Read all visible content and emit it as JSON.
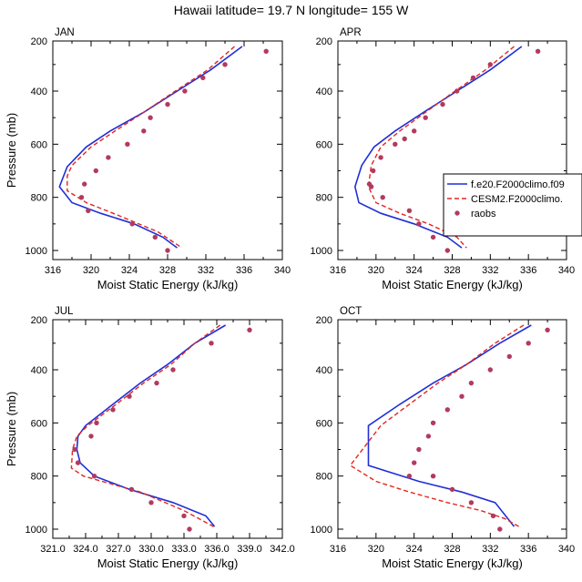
{
  "figure_title": "Hawaii  latitude= 19.7 N longitude= 155 W",
  "colors": {
    "series1": "#1f2fd8",
    "series2": "#e2261f",
    "obs": "#b33a5e"
  },
  "chart_data": [
    {
      "type": "line",
      "title": "JAN",
      "xlabel": "Moist Static Energy (kJ/kg)",
      "ylabel": "Pressure (mb)",
      "xlim": [
        316,
        340
      ],
      "ylim": [
        1000,
        200
      ],
      "xticks": [
        "316",
        "320",
        "324",
        "328",
        "332",
        "336",
        "340"
      ],
      "yticks": [
        "200",
        "400",
        "600",
        "800",
        "1000"
      ],
      "series": [
        {
          "x": [
            335.8,
            332.5,
            329.0,
            325.5,
            322.0,
            319.5,
            317.5,
            316.7,
            318.0,
            321.0,
            324.5,
            327.5,
            329.0
          ],
          "y": [
            232,
            320,
            400,
            480,
            550,
            610,
            685,
            760,
            820,
            860,
            900,
            950,
            990
          ]
        },
        {
          "x": [
            335.0,
            332.2,
            328.8,
            325.5,
            322.5,
            320.0,
            318.0,
            317.5,
            317.5,
            319.5,
            323.0,
            327.0,
            329.5
          ],
          "y": [
            232,
            320,
            400,
            480,
            550,
            610,
            680,
            720,
            775,
            820,
            870,
            930,
            990
          ]
        },
        {
          "x": [
            338.3,
            334.0,
            331.7,
            329.8,
            328.0,
            326.2,
            325.5,
            323.8,
            321.8,
            320.5,
            319.3,
            319.0,
            319.7,
            324.3,
            326.7,
            328.0
          ],
          "y": [
            250,
            300,
            350,
            400,
            450,
            500,
            550,
            600,
            650,
            700,
            750,
            800,
            850,
            900,
            950,
            1000
          ]
        }
      ]
    },
    {
      "type": "line",
      "title": "APR",
      "xlabel": "Moist Static Energy (kJ/kg)",
      "ylabel": "",
      "xlim": [
        316,
        340
      ],
      "ylim": [
        1000,
        200
      ],
      "xticks": [
        "316",
        "320",
        "324",
        "328",
        "332",
        "336",
        "340"
      ],
      "yticks": [
        "200",
        "400",
        "600",
        "800",
        "1000"
      ],
      "legend": {
        "position": "right",
        "entries": [
          "f.e20.F2000climo.f09",
          "CESM2.F2000climo.",
          "raobs"
        ]
      },
      "series": [
        {
          "name": "f.e20.F2000climo.f09",
          "x": [
            335.3,
            332.0,
            328.5,
            325.0,
            322.0,
            319.8,
            318.5,
            317.8,
            318.2,
            320.5,
            324.0,
            327.5,
            329.0
          ],
          "y": [
            232,
            320,
            400,
            480,
            550,
            610,
            680,
            760,
            820,
            860,
            900,
            950,
            990
          ]
        },
        {
          "name": "CESM2.F2000climo.",
          "x": [
            334.5,
            331.5,
            328.3,
            325.2,
            322.5,
            320.5,
            319.5,
            319.2,
            320.0,
            322.5,
            325.5,
            328.5,
            329.5
          ],
          "y": [
            232,
            320,
            400,
            480,
            550,
            610,
            680,
            760,
            820,
            860,
            900,
            950,
            990
          ]
        },
        {
          "name": "raobs",
          "x": [
            337.0,
            332.0,
            330.2,
            328.5,
            327.0,
            325.2,
            324.0,
            323.0,
            322.0,
            320.5,
            319.7,
            319.3,
            319.5,
            320.7,
            323.5,
            324.5,
            326.0,
            327.5
          ],
          "y": [
            250,
            300,
            350,
            400,
            450,
            500,
            550,
            580,
            600,
            650,
            700,
            750,
            760,
            800,
            850,
            900,
            950,
            1000
          ]
        }
      ]
    },
    {
      "type": "line",
      "title": "JUL",
      "xlabel": "Moist Static Energy (kJ/kg)",
      "ylabel": "Pressure (mb)",
      "xlim": [
        321,
        342
      ],
      "ylim": [
        1000,
        200
      ],
      "xticks": [
        "321.0",
        "324.0",
        "327.0",
        "330.0",
        "333.0",
        "336.0",
        "339.0",
        "342.0"
      ],
      "yticks": [
        "200",
        "400",
        "600",
        "800",
        "1000"
      ],
      "series": [
        {
          "x": [
            336.8,
            334.0,
            331.5,
            329.0,
            326.5,
            324.0,
            323.3,
            323.2,
            323.5,
            324.8,
            328.0,
            332.0,
            335.0,
            335.8
          ],
          "y": [
            232,
            300,
            380,
            450,
            530,
            610,
            650,
            700,
            750,
            800,
            850,
            900,
            950,
            990
          ]
        },
        {
          "x": [
            336.3,
            334.0,
            331.8,
            329.3,
            326.8,
            324.2,
            323.2,
            322.8,
            322.7,
            323.8,
            325.5,
            329.0,
            333.0,
            335.7
          ],
          "y": [
            232,
            300,
            380,
            450,
            530,
            610,
            650,
            700,
            770,
            800,
            820,
            860,
            930,
            990
          ]
        },
        {
          "x": [
            339.0,
            335.5,
            332.0,
            330.5,
            328.0,
            326.5,
            325.0,
            324.5,
            323.0,
            323.3,
            324.8,
            328.2,
            330.0,
            333.0,
            333.5
          ],
          "y": [
            250,
            300,
            400,
            450,
            500,
            550,
            600,
            650,
            700,
            750,
            800,
            850,
            900,
            950,
            1000
          ]
        }
      ]
    },
    {
      "type": "line",
      "title": "OCT",
      "xlabel": "Moist Static Energy (kJ/kg)",
      "ylabel": "",
      "xlim": [
        316,
        340
      ],
      "ylim": [
        1000,
        200
      ],
      "xticks": [
        "316",
        "320",
        "324",
        "328",
        "332",
        "336",
        "340"
      ],
      "yticks": [
        "200",
        "400",
        "600",
        "800",
        "1000"
      ],
      "series": [
        {
          "x": [
            336.3,
            333.0,
            329.5,
            326.0,
            322.5,
            319.2,
            319.2,
            319.2,
            324.5,
            329.0,
            332.5,
            334.5
          ],
          "y": [
            232,
            300,
            380,
            450,
            530,
            610,
            685,
            760,
            820,
            860,
            900,
            990
          ]
        },
        {
          "x": [
            335.5,
            332.5,
            329.5,
            326.5,
            323.5,
            320.5,
            317.3,
            320.0,
            323.5,
            327.5,
            331.0,
            333.5,
            335.0
          ],
          "y": [
            232,
            300,
            380,
            450,
            530,
            610,
            760,
            820,
            860,
            900,
            930,
            960,
            990
          ]
        },
        {
          "x": [
            338.0,
            336.0,
            334.0,
            332.0,
            330.0,
            329.0,
            327.5,
            326.0,
            325.5,
            324.5,
            324.0,
            323.5,
            326.0,
            328.0,
            330.0,
            332.3,
            333.0
          ],
          "y": [
            250,
            300,
            350,
            400,
            450,
            500,
            550,
            600,
            650,
            700,
            750,
            800,
            800,
            850,
            900,
            950,
            1000
          ]
        }
      ]
    }
  ]
}
